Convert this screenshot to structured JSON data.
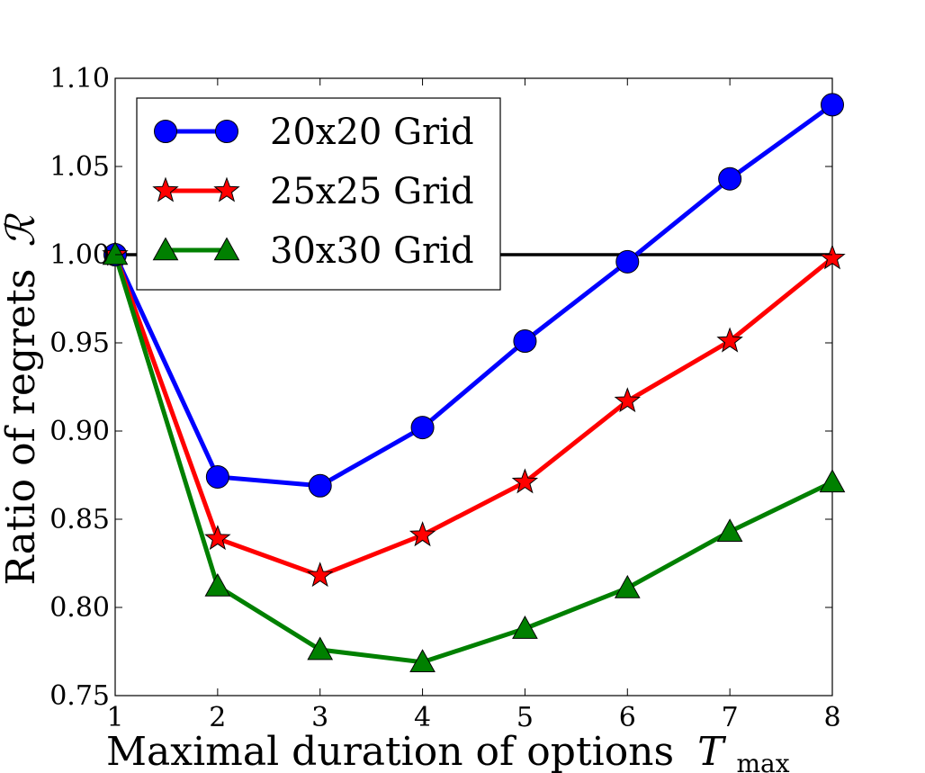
{
  "chart_data": {
    "type": "line",
    "title": "",
    "xlabel": "Maximal duration of options",
    "xlabel_math": {
      "symbol": "T",
      "subscript": "max"
    },
    "ylabel": "Ratio of regrets",
    "ylabel_math": {
      "symbol": "ℛ"
    },
    "x": [
      1,
      2,
      3,
      4,
      5,
      6,
      7,
      8
    ],
    "xlim": [
      1,
      8
    ],
    "ylim": [
      0.75,
      1.1
    ],
    "xticks": [
      1,
      2,
      3,
      4,
      5,
      6,
      7,
      8
    ],
    "yticks": [
      "0.75",
      "0.80",
      "0.85",
      "0.90",
      "0.95",
      "1.00",
      "1.05",
      "1.10"
    ],
    "grid": false,
    "reference_line": {
      "y": 1.0,
      "color": "#000000"
    },
    "legend_position": "top-left",
    "series": [
      {
        "name": "20x20 Grid",
        "color": "#0000ff",
        "marker": "circle",
        "values": [
          1.0,
          0.874,
          0.869,
          0.902,
          0.951,
          0.996,
          1.043,
          1.085
        ]
      },
      {
        "name": "25x25 Grid",
        "color": "#ff0000",
        "marker": "star",
        "values": [
          1.0,
          0.839,
          0.818,
          0.841,
          0.871,
          0.917,
          0.951,
          0.998
        ]
      },
      {
        "name": "30x30 Grid",
        "color": "#008000",
        "marker": "triangle",
        "values": [
          1.0,
          0.812,
          0.776,
          0.769,
          0.788,
          0.811,
          0.843,
          0.871
        ]
      }
    ]
  }
}
